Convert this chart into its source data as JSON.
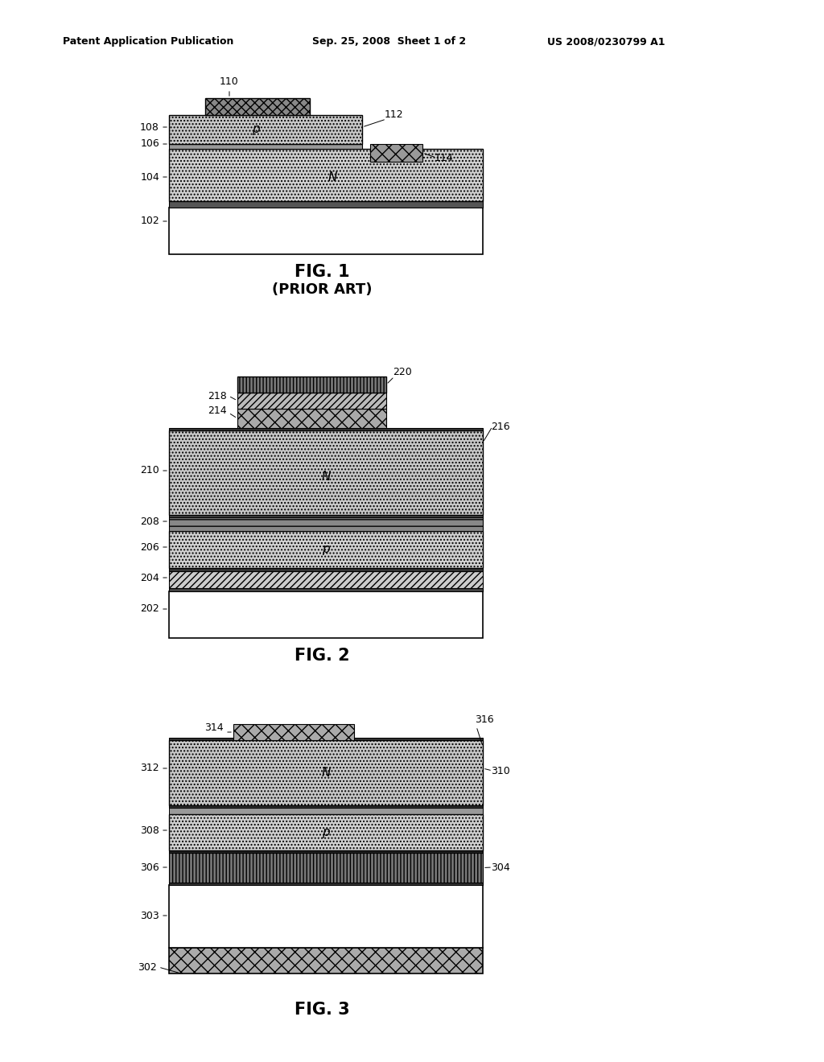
{
  "header_left": "Patent Application Publication",
  "header_mid": "Sep. 25, 2008  Sheet 1 of 2",
  "header_right": "US 2008/0230799 A1",
  "fig1_caption": "FIG. 1",
  "fig1_subcaption": "(PRIOR ART)",
  "fig2_caption": "FIG. 2",
  "fig3_caption": "FIG. 3",
  "bg_color": "#ffffff",
  "line_color": "#000000"
}
